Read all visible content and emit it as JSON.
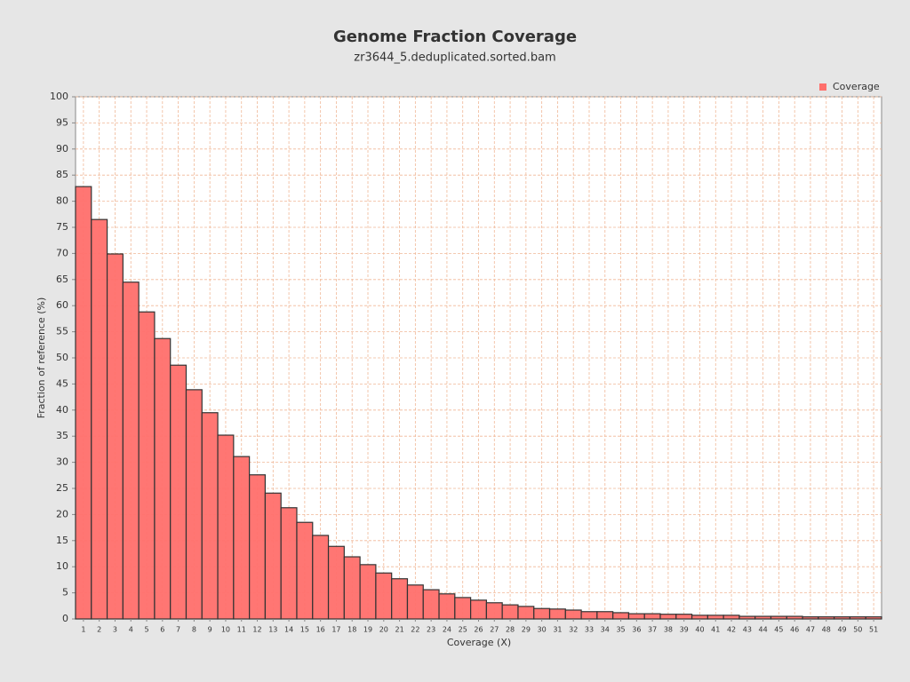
{
  "chart_data": {
    "type": "bar",
    "title": "Genome Fraction Coverage",
    "subtitle": "zr3644_5.deduplicated.sorted.bam",
    "x_label": "Coverage (X)",
    "y_label": "Fraction of reference (%)",
    "categories": [
      "1",
      "2",
      "3",
      "4",
      "5",
      "6",
      "7",
      "8",
      "9",
      "10",
      "11",
      "12",
      "13",
      "14",
      "15",
      "16",
      "17",
      "18",
      "19",
      "20",
      "21",
      "22",
      "23",
      "24",
      "25",
      "26",
      "27",
      "28",
      "29",
      "30",
      "31",
      "32",
      "33",
      "34",
      "35",
      "36",
      "37",
      "38",
      "39",
      "40",
      "41",
      "42",
      "43",
      "44",
      "45",
      "46",
      "47",
      "48",
      "49",
      "50",
      "51"
    ],
    "series": [
      {
        "name": "Coverage",
        "color": "#ff6f6b",
        "values": [
          82.8,
          76.5,
          69.9,
          64.5,
          58.8,
          53.7,
          48.6,
          43.9,
          39.5,
          35.2,
          31.1,
          27.6,
          24.1,
          21.3,
          18.5,
          16.0,
          13.9,
          11.9,
          10.4,
          8.8,
          7.7,
          6.5,
          5.6,
          4.8,
          4.1,
          3.6,
          3.1,
          2.7,
          2.4,
          2.0,
          1.9,
          1.7,
          1.4,
          1.4,
          1.2,
          1.0,
          1.0,
          0.9,
          0.9,
          0.7,
          0.7,
          0.7,
          0.5,
          0.5,
          0.5,
          0.5,
          0.4,
          0.4,
          0.4,
          0.4,
          0.4
        ]
      }
    ],
    "ylim": [
      0,
      100
    ],
    "yticks": [
      0,
      5,
      10,
      15,
      20,
      25,
      30,
      35,
      40,
      45,
      50,
      55,
      60,
      65,
      70,
      75,
      80,
      85,
      90,
      95,
      100
    ],
    "grid": true,
    "legend": "top-right"
  }
}
